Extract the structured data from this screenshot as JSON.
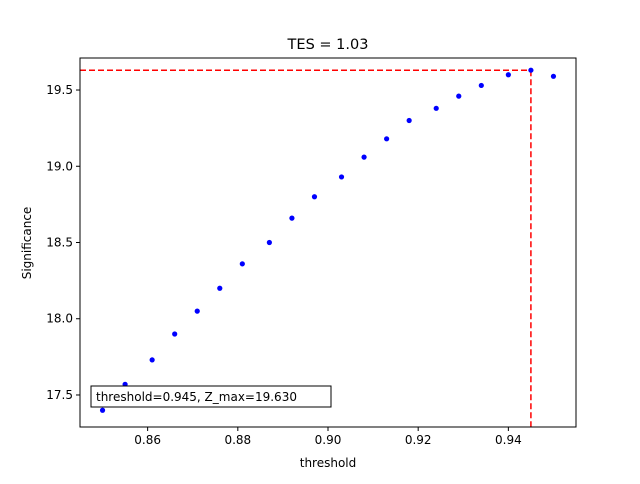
{
  "chart_data": {
    "type": "scatter",
    "title": "TES = 1.03",
    "xlabel": "threshold",
    "ylabel": "Significance",
    "xlim": [
      0.845,
      0.955
    ],
    "ylim": [
      17.29,
      19.71
    ],
    "x_ticks": [
      0.86,
      0.88,
      0.9,
      0.92,
      0.94
    ],
    "x_tick_labels": [
      "0.86",
      "0.88",
      "0.90",
      "0.92",
      "0.94"
    ],
    "y_ticks": [
      17.5,
      18.0,
      18.5,
      19.0,
      19.5
    ],
    "y_tick_labels": [
      "17.5",
      "18.0",
      "18.5",
      "19.0",
      "19.5"
    ],
    "grid": false,
    "series": [
      {
        "color": "#0000ff",
        "marker": "circle",
        "x": [
          0.85,
          0.855,
          0.861,
          0.866,
          0.871,
          0.876,
          0.881,
          0.887,
          0.892,
          0.897,
          0.903,
          0.908,
          0.913,
          0.918,
          0.924,
          0.929,
          0.934,
          0.94,
          0.945,
          0.95
        ],
        "y": [
          17.4,
          17.57,
          17.73,
          17.9,
          18.05,
          18.2,
          18.36,
          18.5,
          18.66,
          18.8,
          18.93,
          19.06,
          19.18,
          19.3,
          19.38,
          19.46,
          19.53,
          19.6,
          19.63,
          19.59
        ]
      }
    ],
    "reference_lines": {
      "color": "#ff0000",
      "style": "dashed",
      "horizontal_y": 19.63,
      "vertical_x": 0.945
    },
    "annotation": {
      "text": "threshold=0.945, Z_max=19.630",
      "placement": "bottom-left"
    }
  }
}
